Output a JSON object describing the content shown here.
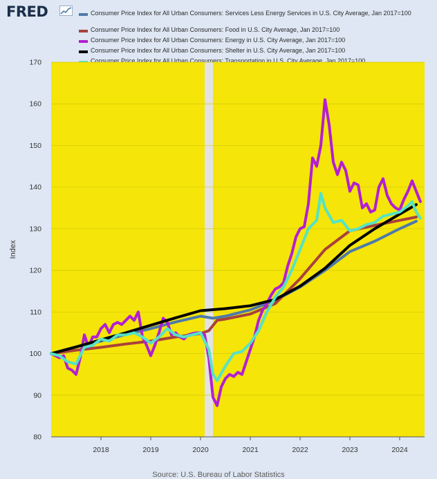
{
  "header": {
    "logo_text": "FRED",
    "logo_icon": "line-chart-icon"
  },
  "source_note": "Source: U.S. Bureau of Labor Statistics",
  "colors": {
    "page_background": "#dee7f3",
    "plot_background": "#f5e508",
    "recession_band": "#e3e3e3",
    "gridline": "#d4c90a"
  },
  "chart_data": {
    "type": "line",
    "ylabel": "Index",
    "xlabel": "",
    "xlim": [
      2017.0,
      2024.5
    ],
    "ylim": [
      80,
      170
    ],
    "yticks": [
      80,
      90,
      100,
      110,
      120,
      130,
      140,
      150,
      160,
      170
    ],
    "xticks": [
      {
        "label": "2018",
        "value": 2018.0
      },
      {
        "label": "2019",
        "value": 2019.0
      },
      {
        "label": "2020",
        "value": 2020.0
      },
      {
        "label": "2021",
        "value": 2021.0
      },
      {
        "label": "2022",
        "value": 2022.0
      },
      {
        "label": "2023",
        "value": 2023.0
      },
      {
        "label": "2024",
        "value": 2024.0
      }
    ],
    "grid": true,
    "legend_position": "top",
    "shaded_period": {
      "start": "2020-02",
      "end": "2020-04"
    },
    "series": [
      {
        "name": "Consumer Price Index for All Urban Consumers: Services Less Energy Services in U.S. City Average, Jan 2017=100",
        "color": "#4e7aa8",
        "points": [
          [
            "2017-01",
            100
          ],
          [
            "2017-07",
            101.6
          ],
          [
            "2018-01",
            103.0
          ],
          [
            "2018-07",
            104.6
          ],
          [
            "2019-01",
            106.0
          ],
          [
            "2019-07",
            107.6
          ],
          [
            "2020-01",
            109.0
          ],
          [
            "2020-04",
            108.5
          ],
          [
            "2020-07",
            109.0
          ],
          [
            "2021-01",
            110.5
          ],
          [
            "2021-07",
            112.8
          ],
          [
            "2022-01",
            116.0
          ],
          [
            "2022-07",
            120.0
          ],
          [
            "2023-01",
            124.5
          ],
          [
            "2023-07",
            127.0
          ],
          [
            "2024-01",
            130.0
          ],
          [
            "2024-05",
            131.8
          ]
        ]
      },
      {
        "name": "Consumer Price Index for All Urban Consumers: Food in U.S. City Average, Jan 2017=100",
        "color": "#a9413b",
        "points": [
          [
            "2017-01",
            100
          ],
          [
            "2017-07",
            100.8
          ],
          [
            "2018-01",
            101.5
          ],
          [
            "2018-07",
            102.3
          ],
          [
            "2019-01",
            103.0
          ],
          [
            "2019-07",
            104.0
          ],
          [
            "2020-01",
            104.8
          ],
          [
            "2020-03",
            105.5
          ],
          [
            "2020-05",
            108.0
          ],
          [
            "2020-07",
            108.3
          ],
          [
            "2021-01",
            109.5
          ],
          [
            "2021-07",
            112.0
          ],
          [
            "2022-01",
            118.0
          ],
          [
            "2022-07",
            125.0
          ],
          [
            "2023-01",
            129.5
          ],
          [
            "2023-07",
            130.8
          ],
          [
            "2024-01",
            132.0
          ],
          [
            "2024-05",
            132.8
          ]
        ]
      },
      {
        "name": "Consumer Price Index for All Urban Consumers: Energy in U.S. City Average, Jan 2017=100",
        "color": "#b21fd3",
        "points": [
          [
            "2017-01",
            100
          ],
          [
            "2017-03",
            99.0
          ],
          [
            "2017-04",
            99.5
          ],
          [
            "2017-05",
            96.5
          ],
          [
            "2017-06",
            96.0
          ],
          [
            "2017-07",
            95.0
          ],
          [
            "2017-08",
            99.0
          ],
          [
            "2017-09",
            104.5
          ],
          [
            "2017-10",
            101.5
          ],
          [
            "2017-11",
            104.0
          ],
          [
            "2017-12",
            104.0
          ],
          [
            "2018-01",
            106.0
          ],
          [
            "2018-02",
            107.0
          ],
          [
            "2018-03",
            105.0
          ],
          [
            "2018-04",
            107.0
          ],
          [
            "2018-05",
            107.5
          ],
          [
            "2018-06",
            107.0
          ],
          [
            "2018-07",
            108.0
          ],
          [
            "2018-08",
            109.0
          ],
          [
            "2018-09",
            108.0
          ],
          [
            "2018-10",
            110.0
          ],
          [
            "2018-11",
            104.0
          ],
          [
            "2018-12",
            102.0
          ],
          [
            "2019-01",
            99.5
          ],
          [
            "2019-02",
            102.0
          ],
          [
            "2019-03",
            105.0
          ],
          [
            "2019-04",
            108.5
          ],
          [
            "2019-05",
            107.5
          ],
          [
            "2019-06",
            104.5
          ],
          [
            "2019-07",
            105.0
          ],
          [
            "2019-08",
            104.0
          ],
          [
            "2019-09",
            103.5
          ],
          [
            "2019-10",
            104.5
          ],
          [
            "2019-11",
            104.8
          ],
          [
            "2019-12",
            105.0
          ],
          [
            "2020-01",
            105.0
          ],
          [
            "2020-02",
            104.5
          ],
          [
            "2020-03",
            99.0
          ],
          [
            "2020-04",
            89.5
          ],
          [
            "2020-05",
            87.5
          ],
          [
            "2020-06",
            92.0
          ],
          [
            "2020-07",
            94.0
          ],
          [
            "2020-08",
            95.0
          ],
          [
            "2020-09",
            94.5
          ],
          [
            "2020-10",
            95.5
          ],
          [
            "2020-11",
            95.0
          ],
          [
            "2020-12",
            98.0
          ],
          [
            "2021-01",
            101.0
          ],
          [
            "2021-02",
            104.0
          ],
          [
            "2021-03",
            108.0
          ],
          [
            "2021-04",
            110.5
          ],
          [
            "2021-05",
            112.0
          ],
          [
            "2021-06",
            114.0
          ],
          [
            "2021-07",
            115.5
          ],
          [
            "2021-08",
            116.0
          ],
          [
            "2021-09",
            117.0
          ],
          [
            "2021-10",
            121.0
          ],
          [
            "2021-11",
            124.0
          ],
          [
            "2021-12",
            128.0
          ],
          [
            "2022-01",
            130.0
          ],
          [
            "2022-02",
            130.5
          ],
          [
            "2022-03",
            136.0
          ],
          [
            "2022-04",
            147.0
          ],
          [
            "2022-05",
            145.0
          ],
          [
            "2022-06",
            150.0
          ],
          [
            "2022-07",
            161.0
          ],
          [
            "2022-08",
            155.0
          ],
          [
            "2022-09",
            146.0
          ],
          [
            "2022-10",
            143.0
          ],
          [
            "2022-11",
            146.0
          ],
          [
            "2022-12",
            144.0
          ],
          [
            "2023-01",
            139.0
          ],
          [
            "2023-02",
            141.0
          ],
          [
            "2023-03",
            140.5
          ],
          [
            "2023-04",
            135.0
          ],
          [
            "2023-05",
            136.0
          ],
          [
            "2023-06",
            134.0
          ],
          [
            "2023-07",
            134.5
          ],
          [
            "2023-08",
            140.0
          ],
          [
            "2023-09",
            142.0
          ],
          [
            "2023-10",
            138.0
          ],
          [
            "2023-11",
            136.0
          ],
          [
            "2023-12",
            135.0
          ],
          [
            "2024-01",
            134.5
          ],
          [
            "2024-02",
            137.0
          ],
          [
            "2024-03",
            139.0
          ],
          [
            "2024-04",
            141.5
          ],
          [
            "2024-05",
            139.0
          ],
          [
            "2024-06",
            136.5
          ]
        ]
      },
      {
        "name": "Consumer Price Index for All Urban Consumers: Shelter in U.S. City Average, Jan 2017=100",
        "color": "#000000",
        "points": [
          [
            "2017-01",
            100
          ],
          [
            "2017-07",
            101.6
          ],
          [
            "2018-01",
            103.3
          ],
          [
            "2018-07",
            105.0
          ],
          [
            "2019-01",
            106.8
          ],
          [
            "2019-07",
            108.6
          ],
          [
            "2020-01",
            110.3
          ],
          [
            "2020-07",
            110.8
          ],
          [
            "2021-01",
            111.5
          ],
          [
            "2021-07",
            113.0
          ],
          [
            "2022-01",
            116.2
          ],
          [
            "2022-07",
            120.5
          ],
          [
            "2023-01",
            126.0
          ],
          [
            "2023-07",
            130.0
          ],
          [
            "2024-01",
            133.5
          ],
          [
            "2024-05",
            135.8
          ]
        ]
      },
      {
        "name": "Consumer Price Index for All Urban Consumers: Transportation in U.S. City Average, Jan 2017=100",
        "color": "#55e3c5",
        "points": [
          [
            "2017-01",
            100
          ],
          [
            "2017-03",
            99.5
          ],
          [
            "2017-05",
            98.0
          ],
          [
            "2017-07",
            97.5
          ],
          [
            "2017-09",
            101.5
          ],
          [
            "2017-11",
            102.0
          ],
          [
            "2018-01",
            103.5
          ],
          [
            "2018-03",
            103.0
          ],
          [
            "2018-05",
            104.5
          ],
          [
            "2018-07",
            104.5
          ],
          [
            "2018-09",
            105.0
          ],
          [
            "2018-11",
            104.0
          ],
          [
            "2019-01",
            102.5
          ],
          [
            "2019-03",
            104.0
          ],
          [
            "2019-05",
            106.0
          ],
          [
            "2019-07",
            104.5
          ],
          [
            "2019-09",
            104.0
          ],
          [
            "2019-11",
            104.5
          ],
          [
            "2020-01",
            105.0
          ],
          [
            "2020-03",
            101.0
          ],
          [
            "2020-04",
            95.0
          ],
          [
            "2020-05",
            93.5
          ],
          [
            "2020-07",
            97.0
          ],
          [
            "2020-09",
            100.0
          ],
          [
            "2020-11",
            100.5
          ],
          [
            "2021-01",
            102.5
          ],
          [
            "2021-03",
            105.5
          ],
          [
            "2021-05",
            110.0
          ],
          [
            "2021-07",
            113.5
          ],
          [
            "2021-09",
            116.0
          ],
          [
            "2021-11",
            120.0
          ],
          [
            "2022-01",
            125.0
          ],
          [
            "2022-03",
            130.0
          ],
          [
            "2022-05",
            132.0
          ],
          [
            "2022-06",
            138.5
          ],
          [
            "2022-07",
            135.0
          ],
          [
            "2022-09",
            131.5
          ],
          [
            "2022-11",
            132.0
          ],
          [
            "2023-01",
            129.5
          ],
          [
            "2023-03",
            130.0
          ],
          [
            "2023-05",
            131.0
          ],
          [
            "2023-07",
            131.5
          ],
          [
            "2023-09",
            133.0
          ],
          [
            "2023-11",
            133.5
          ],
          [
            "2024-01",
            134.0
          ],
          [
            "2024-03",
            135.5
          ],
          [
            "2024-04",
            136.5
          ],
          [
            "2024-05",
            134.0
          ],
          [
            "2024-06",
            132.5
          ]
        ]
      }
    ]
  }
}
